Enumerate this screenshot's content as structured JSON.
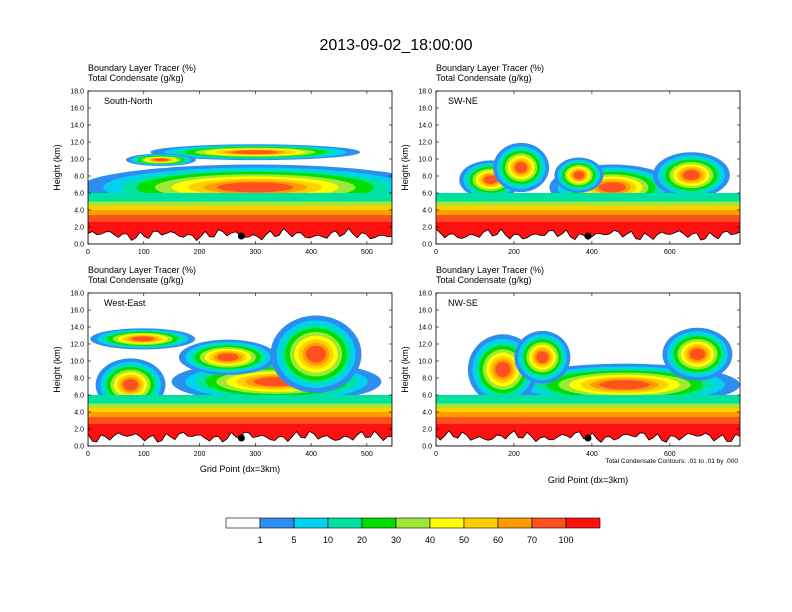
{
  "title": "2013-09-02_18:00:00",
  "chart_data": [
    {
      "type": "heatmap",
      "panel_label": "South-North",
      "left_title_1": "Boundary Layer Tracer   (%)",
      "left_title_2": "Total Condensate   (g/kg)",
      "ylabel": "Height (km)",
      "xlabel": "",
      "xlim": [
        0,
        545
      ],
      "ylim": [
        0,
        18
      ],
      "xticks": [
        0,
        100,
        200,
        300,
        400,
        500
      ],
      "yticks": [
        "0.0",
        "2.0",
        "4.0",
        "6.0",
        "8.0",
        "10.0",
        "12.0",
        "14.0",
        "16.0",
        "18.0"
      ],
      "marker_x": 275
    },
    {
      "type": "heatmap",
      "panel_label": "SW-NE",
      "left_title_1": "Boundary Layer Tracer   (%)",
      "left_title_2": "Total Condensate   (g/kg)",
      "ylabel": "Height (km)",
      "xlabel": "",
      "xlim": [
        0,
        780
      ],
      "ylim": [
        0,
        18
      ],
      "xticks": [
        0,
        200,
        400,
        600
      ],
      "yticks": [
        "0.0",
        "2.0",
        "4.0",
        "6.0",
        "8.0",
        "10.0",
        "12.0",
        "14.0",
        "16.0",
        "18.0"
      ],
      "marker_x": 390
    },
    {
      "type": "heatmap",
      "panel_label": "West-East",
      "left_title_1": "Boundary Layer Tracer   (%)",
      "left_title_2": "Total Condensate   (g/kg)",
      "ylabel": "Height (km)",
      "xlabel": "Grid Point (dx=3km)",
      "xlim": [
        0,
        545
      ],
      "ylim": [
        0,
        18
      ],
      "xticks": [
        0,
        100,
        200,
        300,
        400,
        500
      ],
      "yticks": [
        "0.0",
        "2.0",
        "4.0",
        "6.0",
        "8.0",
        "10.0",
        "12.0",
        "14.0",
        "16.0",
        "18.0"
      ],
      "marker_x": 275
    },
    {
      "type": "heatmap",
      "panel_label": "NW-SE",
      "left_title_1": "Boundary Layer Tracer   (%)",
      "left_title_2": "Total Condensate   (g/kg)",
      "ylabel": "Height (km)",
      "xlabel": "Grid Point (dx=3km)",
      "xlim": [
        0,
        780
      ],
      "ylim": [
        0,
        18
      ],
      "xticks": [
        0,
        200,
        400,
        600
      ],
      "yticks": [
        "0.0",
        "2.0",
        "4.0",
        "6.0",
        "8.0",
        "10.0",
        "12.0",
        "14.0",
        "16.0",
        "18.0"
      ],
      "marker_x": 390,
      "contour_note": "Total Condensate Contours: .01 to .01 by .000"
    }
  ],
  "colorbar": {
    "labels": [
      "1",
      "5",
      "10",
      "20",
      "30",
      "40",
      "50",
      "60",
      "70",
      "100"
    ],
    "colors": [
      "#ffffff",
      "#2e8ef0",
      "#00d2f0",
      "#00e2a0",
      "#00e000",
      "#a0e838",
      "#ffff00",
      "#ffd000",
      "#ff9c00",
      "#ff5020",
      "#ff1010"
    ]
  }
}
